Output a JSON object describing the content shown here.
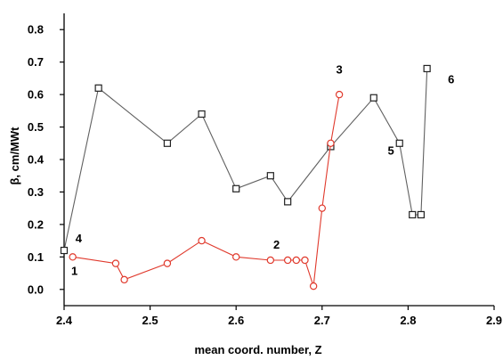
{
  "chart_data": {
    "type": "line",
    "title": "",
    "xlabel": "mean coord. number, Z",
    "ylabel": "β, cm/MWt",
    "xlim": [
      2.4,
      2.9
    ],
    "ylim": [
      -0.05,
      0.85
    ],
    "x_ticks": [
      "2.4",
      "2.5",
      "2.6",
      "2.7",
      "2.8",
      "2.9"
    ],
    "y_ticks": [
      "0.0",
      "0.1",
      "0.2",
      "0.3",
      "0.4",
      "0.5",
      "0.6",
      "0.7",
      "0.8"
    ],
    "grid": false,
    "series": [
      {
        "color": "#606060",
        "marker": "square",
        "x": [
          2.4,
          2.44,
          2.52,
          2.56,
          2.6,
          2.64,
          2.66,
          2.71,
          2.76,
          2.79,
          2.805,
          2.815,
          2.822
        ],
        "y": [
          0.12,
          0.62,
          0.45,
          0.54,
          0.31,
          0.35,
          0.27,
          0.44,
          0.59,
          0.45,
          0.23,
          0.23,
          0.68
        ]
      },
      {
        "color": "#e0392c",
        "marker": "circle",
        "x": [
          2.41,
          2.46,
          2.47,
          2.52,
          2.56,
          2.6,
          2.64,
          2.66,
          2.67,
          2.68,
          2.69,
          2.7,
          2.71,
          2.72
        ],
        "y": [
          0.1,
          0.08,
          0.03,
          0.08,
          0.15,
          0.1,
          0.09,
          0.09,
          0.09,
          0.09,
          0.01,
          0.25,
          0.45,
          0.6
        ]
      }
    ],
    "annotations": [
      {
        "text": "1",
        "x": 2.412,
        "y": 0.045
      },
      {
        "text": "4",
        "x": 2.417,
        "y": 0.145
      },
      {
        "text": "2",
        "x": 2.647,
        "y": 0.125
      },
      {
        "text": "3",
        "x": 2.72,
        "y": 0.665
      },
      {
        "text": "5",
        "x": 2.78,
        "y": 0.415
      },
      {
        "text": "6",
        "x": 2.85,
        "y": 0.635
      }
    ]
  }
}
